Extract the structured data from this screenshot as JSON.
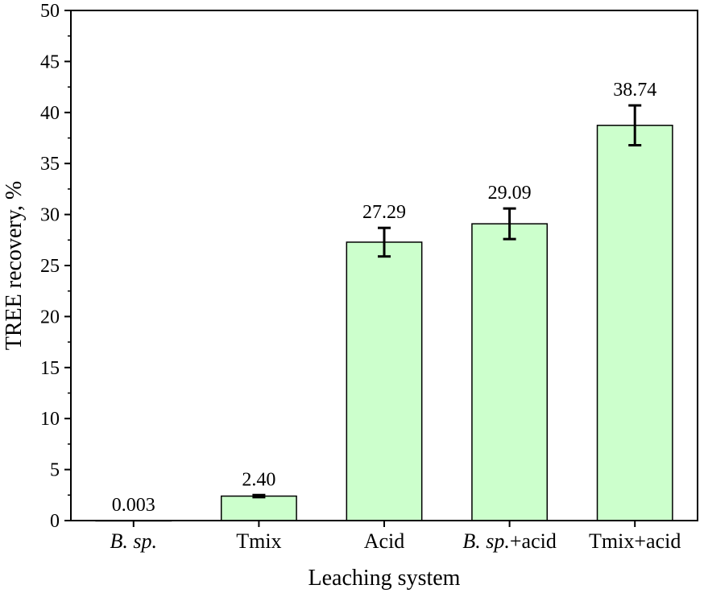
{
  "chart_data": {
    "type": "bar",
    "xlabel": "Leaching system",
    "ylabel": "TREE recovery, %",
    "ylim": [
      0,
      50
    ],
    "yticks": [
      0,
      5,
      10,
      15,
      20,
      25,
      30,
      35,
      40,
      45,
      50
    ],
    "grid": false,
    "categories": [
      {
        "parts": [
          {
            "text": "B. sp.",
            "italic": true
          }
        ]
      },
      {
        "parts": [
          {
            "text": "Tmix",
            "italic": false
          }
        ]
      },
      {
        "parts": [
          {
            "text": "Acid",
            "italic": false
          }
        ]
      },
      {
        "parts": [
          {
            "text": "B. sp.",
            "italic": true
          },
          {
            "text": "+acid",
            "italic": false
          }
        ]
      },
      {
        "parts": [
          {
            "text": "Tmix+acid",
            "italic": false
          }
        ]
      }
    ],
    "values": [
      0.003,
      2.4,
      27.29,
      29.09,
      38.74
    ],
    "errors": [
      0,
      0.1,
      1.4,
      1.5,
      1.95
    ],
    "data_labels": [
      "0.003",
      "2.40",
      "27.29",
      "29.09",
      "38.74"
    ],
    "bar_color": "#ccffcc",
    "bar_edge_color": "#000000"
  }
}
